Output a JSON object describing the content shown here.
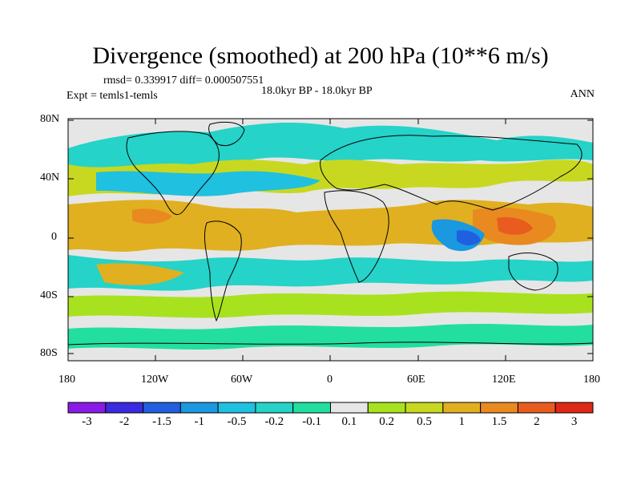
{
  "title": "Divergence (smoothed) at 200 hPa (10**6 m/s)",
  "stats": "rmsd= 0.339917 diff= 0.000507551",
  "expt": "Expt = temls1-temls",
  "period": "18.0kyr BP - 18.0kyr BP",
  "season": "ANN",
  "lat_labels": [
    "80N",
    "40N",
    "0",
    "40S",
    "80S"
  ],
  "lon_labels": [
    "180",
    "120W",
    "60W",
    "0",
    "60E",
    "120E",
    "180"
  ],
  "colorbar": {
    "labels": [
      "-3",
      "-2",
      "-1.5",
      "-1",
      "-0.5",
      "-0.2",
      "-0.1",
      "0.1",
      "0.2",
      "0.5",
      "1",
      "1.5",
      "2",
      "3"
    ],
    "colors": [
      "#8a1be6",
      "#3b2ae0",
      "#1f5fe0",
      "#1a98e0",
      "#20c0e0",
      "#25d3c8",
      "#22dfa0",
      "#e6e6e6",
      "#a8e21e",
      "#c8d820",
      "#e0b020",
      "#e88a20",
      "#e85c20",
      "#e02818"
    ]
  },
  "colors": {
    "land_outline": "#000000",
    "background_field": "#e6e6e6"
  }
}
